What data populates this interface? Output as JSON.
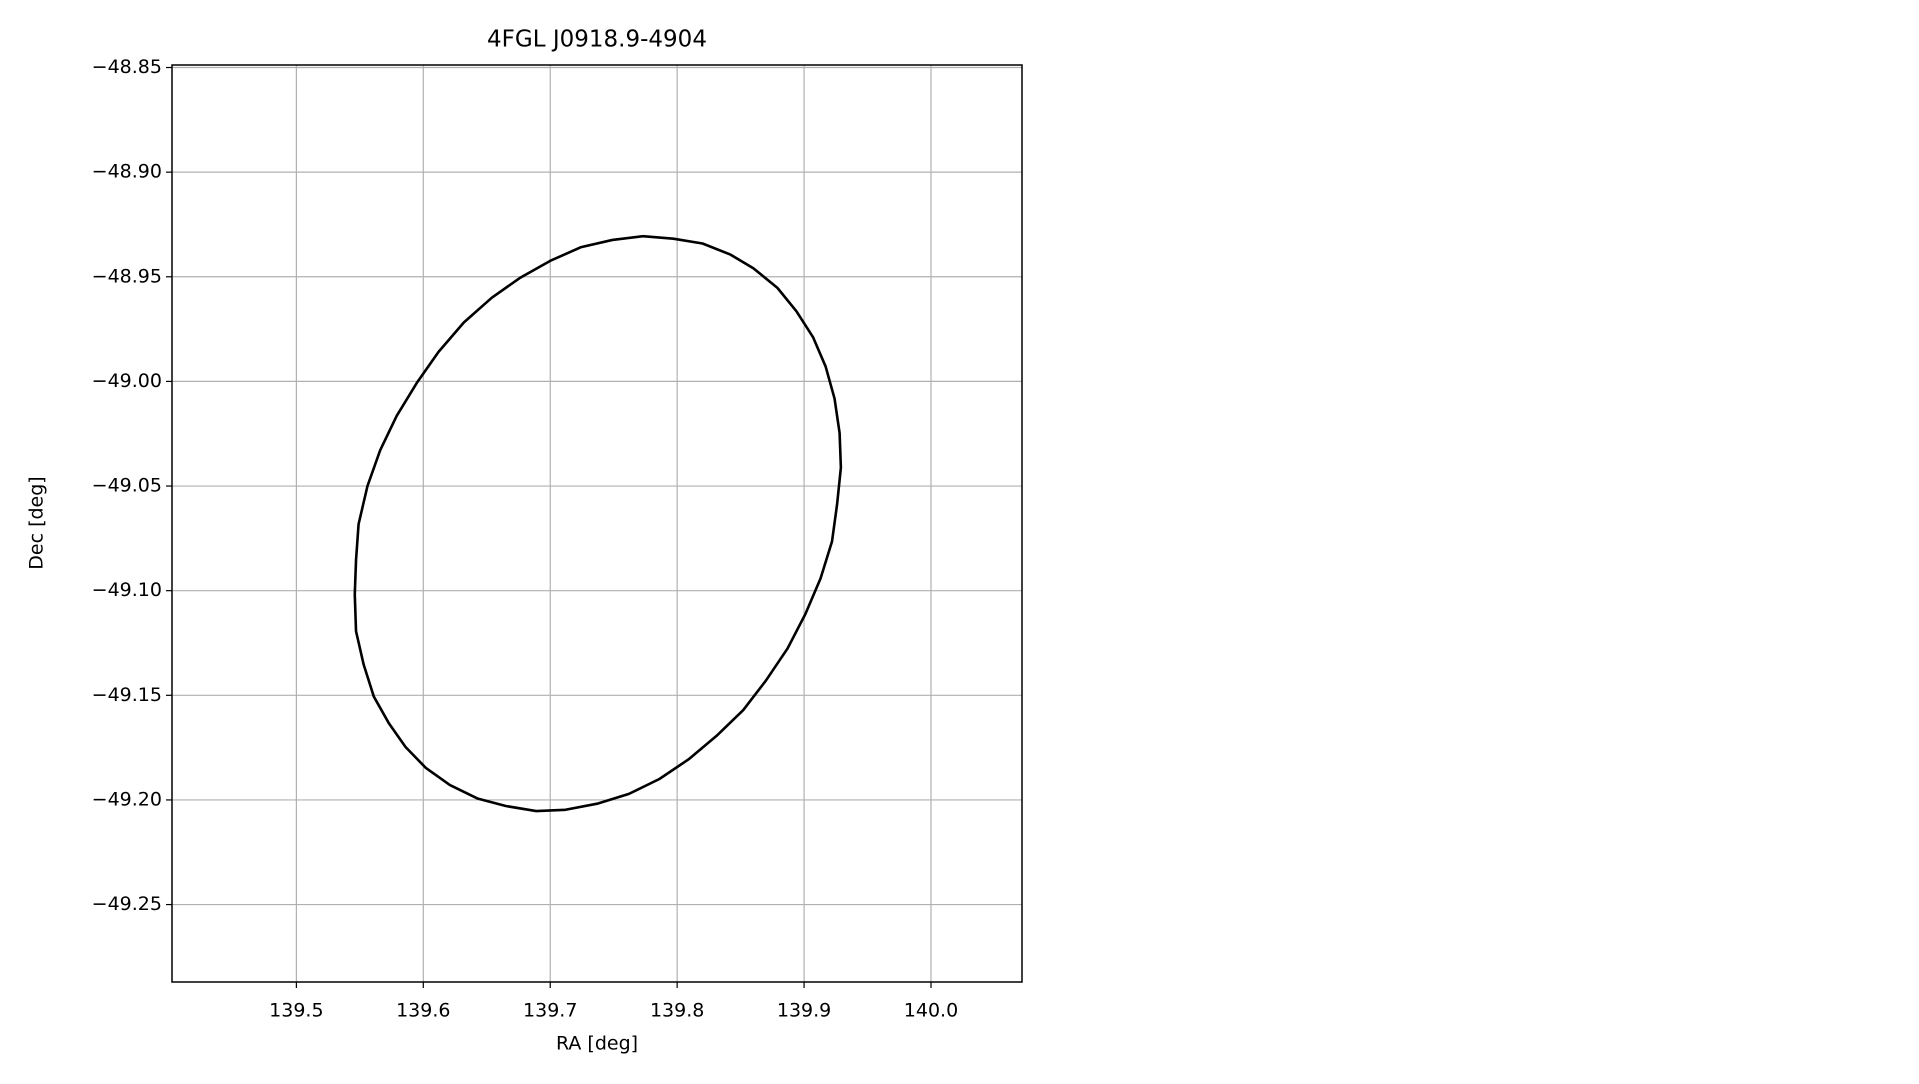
{
  "chart_data": {
    "type": "line",
    "title": "4FGL J0918.9-4904",
    "x_label": "RA [deg]",
    "y_label": "Dec [deg]",
    "x": [
      139.773,
      139.797,
      139.82,
      139.842,
      139.86,
      139.879,
      139.894,
      139.907,
      139.917,
      139.924,
      139.928,
      139.929,
      139.926,
      139.922,
      139.913,
      139.901,
      139.887,
      139.87,
      139.852,
      139.831,
      139.809,
      139.786,
      139.762,
      139.737,
      139.712,
      139.689,
      139.665,
      139.643,
      139.621,
      139.602,
      139.586,
      139.573,
      139.561,
      139.553,
      139.547,
      139.546,
      139.547,
      139.549,
      139.556,
      139.566,
      139.579,
      139.595,
      139.612,
      139.632,
      139.654,
      139.676,
      139.7,
      139.724,
      139.749,
      139.773
    ],
    "series": [
      {
        "color": "#000000",
        "values": [
          -48.9306,
          -48.9318,
          -48.9341,
          -48.9394,
          -48.9459,
          -48.9553,
          -48.9665,
          -48.9788,
          -48.9929,
          -49.0082,
          -49.0247,
          -49.0412,
          -49.0588,
          -49.0765,
          -49.0941,
          -49.1112,
          -49.1276,
          -49.1429,
          -49.1571,
          -49.1694,
          -49.1806,
          -49.19,
          -49.1971,
          -49.2018,
          -49.2047,
          -49.2053,
          -49.2029,
          -49.1994,
          -49.1929,
          -49.1847,
          -49.1747,
          -49.1635,
          -49.1506,
          -49.1353,
          -49.1194,
          -49.1018,
          -49.0853,
          -49.0682,
          -49.05,
          -49.0329,
          -49.0165,
          -49.0006,
          -48.9859,
          -48.9718,
          -48.96,
          -48.9506,
          -48.9424,
          -48.9359,
          -48.9324,
          -48.9306
        ]
      }
    ],
    "xlim": [
      139.402,
      140.0717
    ],
    "ylim": [
      -49.287,
      -48.8488
    ],
    "xticks": [
      139.5,
      139.6,
      139.7,
      139.8,
      139.9,
      {
        "value": 140.0,
        "label": "140.0"
      }
    ],
    "yticks": [
      {
        "value": -48.85,
        "label": "−48.85"
      },
      {
        "value": -48.9,
        "label": "−48.90"
      },
      {
        "value": -48.95,
        "label": "−48.95"
      },
      {
        "value": -49.0,
        "label": "−49.00"
      },
      {
        "value": -49.05,
        "label": "−49.05"
      },
      {
        "value": -49.1,
        "label": "−49.10"
      },
      {
        "value": -49.15,
        "label": "−49.15"
      },
      {
        "value": -49.2,
        "label": "−49.20"
      },
      {
        "value": -49.25,
        "label": "−49.25"
      }
    ],
    "grid": true
  }
}
